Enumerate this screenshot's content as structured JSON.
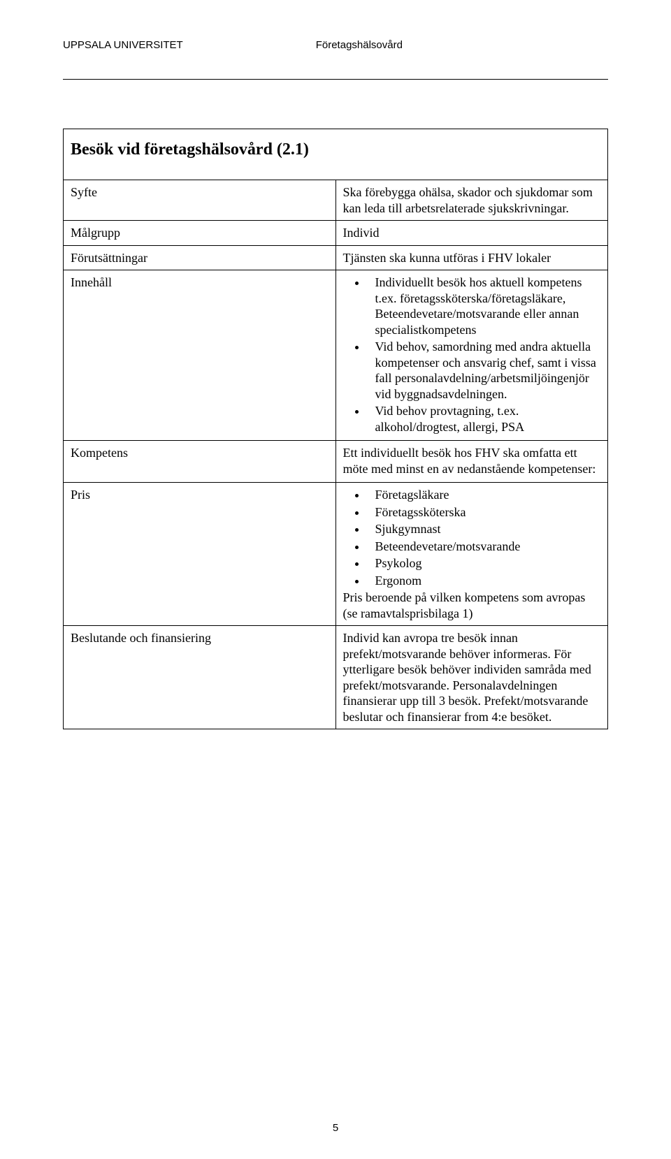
{
  "header": {
    "left": "UPPSALA UNIVERSITET",
    "right": "Företagshälsovård"
  },
  "title": "Besök vid företagshälsovård (2.1)",
  "rows": {
    "syfte": {
      "label": "Syfte",
      "value": "Ska förebygga ohälsa, skador och sjukdomar som kan leda till arbetsrelaterade sjukskrivningar."
    },
    "malgrupp": {
      "label": "Målgrupp",
      "value": "Individ"
    },
    "forutsattningar": {
      "label": "Förutsättningar",
      "value": "Tjänsten ska kunna utföras i FHV lokaler"
    },
    "innehall": {
      "label": "Innehåll",
      "bullets": [
        "Individuellt besök hos aktuell kompetens t.ex. företagssköterska/företagsläkare, Beteendevetare/motsvarande eller annan specialistkompetens",
        "Vid behov, samordning med andra aktuella kompetenser och ansvarig chef, samt i vissa fall personalavdelning/arbetsmiljöingenjör vid byggnadsavdelningen.",
        "Vid behov provtagning, t.ex. alkohol/drogtest, allergi, PSA"
      ]
    },
    "kompetens": {
      "label": "Kompetens",
      "intro": "Ett individuellt besök hos FHV ska omfatta ett möte med minst en av nedanstående kompetenser:",
      "bullets": [
        "Företagsläkare",
        "Företagssköterska",
        "Sjukgymnast",
        "Beteendevetare/motsvarande",
        "Psykolog",
        "Ergonom"
      ]
    },
    "pris": {
      "label": "Pris",
      "value": "Pris beroende på vilken kompetens som avropas (se ramavtalsprisbilaga 1)"
    },
    "beslutande": {
      "label": "Beslutande och finansiering",
      "value": "Individ kan avropa tre besök innan prefekt/motsvarande behöver informeras. För ytterligare besök behöver individen samråda med prefekt/motsvarande. Personalavdelningen finansierar upp till 3 besök. Prefekt/motsvarande beslutar och finansierar from 4:e besöket."
    }
  },
  "page_number": "5"
}
